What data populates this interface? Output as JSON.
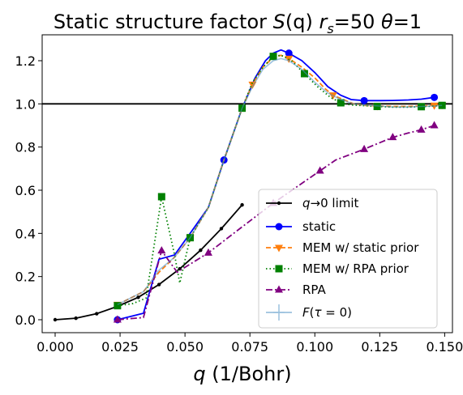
{
  "chart_data": {
    "type": "line",
    "title": "Static structure factor S(q) rₛ=50 θ=1",
    "xlabel": "q (1/Bohr)",
    "ylabel": "",
    "xlim": [
      -0.005,
      0.153
    ],
    "ylim": [
      -0.06,
      1.32
    ],
    "xticks": [
      0.0,
      0.025,
      0.05,
      0.075,
      0.1,
      0.125,
      0.15
    ],
    "xtick_labels": [
      "0.000",
      "0.025",
      "0.050",
      "0.075",
      "0.100",
      "0.125",
      "0.150"
    ],
    "yticks": [
      0.0,
      0.2,
      0.4,
      0.6,
      0.8,
      1.0,
      1.2
    ],
    "ytick_labels": [
      "0.0",
      "0.2",
      "0.4",
      "0.6",
      "0.8",
      "1.0",
      "1.2"
    ],
    "reference_line": {
      "y": 1.0,
      "color": "#000000"
    },
    "legend_position": "lower-right",
    "series": [
      {
        "name": "q→0 limit",
        "color": "#000000",
        "marker": "point",
        "dash": "solid",
        "x": [
          0.0,
          0.008,
          0.016,
          0.024,
          0.032,
          0.04,
          0.048,
          0.056,
          0.064,
          0.072
        ],
        "y": [
          0.0,
          0.007,
          0.028,
          0.062,
          0.104,
          0.163,
          0.236,
          0.322,
          0.422,
          0.532
        ]
      },
      {
        "name": "static",
        "color": "#0000ff",
        "marker": "circle",
        "dash": "solid",
        "marker_every": 6,
        "x": [
          0.024,
          0.034,
          0.04,
          0.046,
          0.052,
          0.059,
          0.065,
          0.072,
          0.077,
          0.081,
          0.084,
          0.087,
          0.09,
          0.095,
          0.1,
          0.105,
          0.11,
          0.114,
          0.119,
          0.125,
          0.13,
          0.136,
          0.141,
          0.146
        ],
        "y": [
          0.0,
          0.03,
          0.28,
          0.3,
          0.4,
          0.52,
          0.74,
          0.98,
          1.12,
          1.2,
          1.235,
          1.25,
          1.235,
          1.2,
          1.145,
          1.08,
          1.04,
          1.02,
          1.015,
          1.015,
          1.016,
          1.018,
          1.022,
          1.03
        ]
      },
      {
        "name": "MEM w/ static prior",
        "color": "#ff7f0e",
        "marker": "triangle-down",
        "dash": "dashed",
        "marker_every": 4,
        "x": [
          0.024,
          0.034,
          0.04,
          0.046,
          0.052,
          0.059,
          0.065,
          0.072,
          0.076,
          0.08,
          0.084,
          0.087,
          0.09,
          0.095,
          0.1,
          0.104,
          0.107,
          0.111,
          0.115,
          0.119,
          0.124,
          0.13,
          0.136,
          0.141,
          0.146,
          0.149
        ],
        "y": [
          0.07,
          0.13,
          0.22,
          0.29,
          0.38,
          0.52,
          0.74,
          0.98,
          1.09,
          1.17,
          1.215,
          1.225,
          1.21,
          1.17,
          1.12,
          1.07,
          1.04,
          1.02,
          1.0,
          0.993,
          0.99,
          0.988,
          0.988,
          0.99,
          0.993,
          0.995
        ]
      },
      {
        "name": "MEM w/ RPA prior",
        "color": "#008000",
        "marker": "square",
        "dash": "dotted",
        "marker_every": 3,
        "x": [
          0.024,
          0.03,
          0.035,
          0.041,
          0.046,
          0.048,
          0.052,
          0.059,
          0.065,
          0.072,
          0.076,
          0.08,
          0.084,
          0.087,
          0.091,
          0.096,
          0.101,
          0.106,
          0.11,
          0.114,
          0.119,
          0.124,
          0.13,
          0.136,
          0.141,
          0.146,
          0.149
        ],
        "y": [
          0.065,
          0.075,
          0.1,
          0.57,
          0.3,
          0.17,
          0.38,
          0.52,
          0.74,
          0.98,
          1.1,
          1.17,
          1.22,
          1.225,
          1.2,
          1.14,
          1.08,
          1.03,
          1.005,
          0.995,
          0.992,
          0.988,
          0.985,
          0.985,
          0.987,
          0.99,
          0.993
        ]
      },
      {
        "name": "RPA",
        "color": "#800080",
        "marker": "triangle-up",
        "dash": "dashdot",
        "marker_every": 2,
        "x": [
          0.024,
          0.034,
          0.041,
          0.047,
          0.059,
          0.072,
          0.084,
          0.096,
          0.102,
          0.108,
          0.119,
          0.125,
          0.13,
          0.136,
          0.141,
          0.146
        ],
        "y": [
          0.0,
          0.01,
          0.32,
          0.22,
          0.31,
          0.43,
          0.54,
          0.64,
          0.69,
          0.74,
          0.79,
          0.82,
          0.845,
          0.865,
          0.88,
          0.9
        ]
      },
      {
        "name": "F(τ=0)",
        "color": "#4a8fc4",
        "marker": "plus",
        "dash": "solid",
        "opacity": 0.55,
        "marker_every": 99,
        "x": [
          0.024,
          0.034,
          0.04,
          0.046,
          0.052,
          0.059,
          0.065,
          0.072,
          0.076,
          0.08,
          0.084,
          0.087,
          0.09,
          0.095,
          0.1,
          0.105,
          0.11,
          0.115,
          0.119,
          0.125,
          0.13,
          0.136,
          0.141,
          0.146,
          0.149
        ],
        "y": [
          0.07,
          0.13,
          0.23,
          0.29,
          0.38,
          0.52,
          0.74,
          0.98,
          1.08,
          1.16,
          1.2,
          1.21,
          1.2,
          1.16,
          1.1,
          1.05,
          1.02,
          1.0,
          0.995,
          0.99,
          0.985,
          0.985,
          0.988,
          0.99,
          0.993
        ]
      }
    ]
  },
  "title_parts": {
    "prefix": "Static structure factor ",
    "S": "S",
    "q_paren": "(q)",
    "r": "r",
    "r_sub": "s",
    "r_eq": "=50 ",
    "theta": "θ",
    "theta_eq": "=1"
  },
  "xlabel_parts": {
    "q": "q",
    "rest": " (1/Bohr)"
  },
  "legend_labels": {
    "l0_q": "q",
    "l0_arrow": "→",
    "l0_rest": "0 limit",
    "l1": "static",
    "l2": "MEM w/ static prior",
    "l3": "MEM w/ RPA prior",
    "l4": "RPA",
    "l5_F": "F",
    "l5_paren": "(",
    "l5_tau": "τ",
    "l5_eq": " = 0)"
  }
}
